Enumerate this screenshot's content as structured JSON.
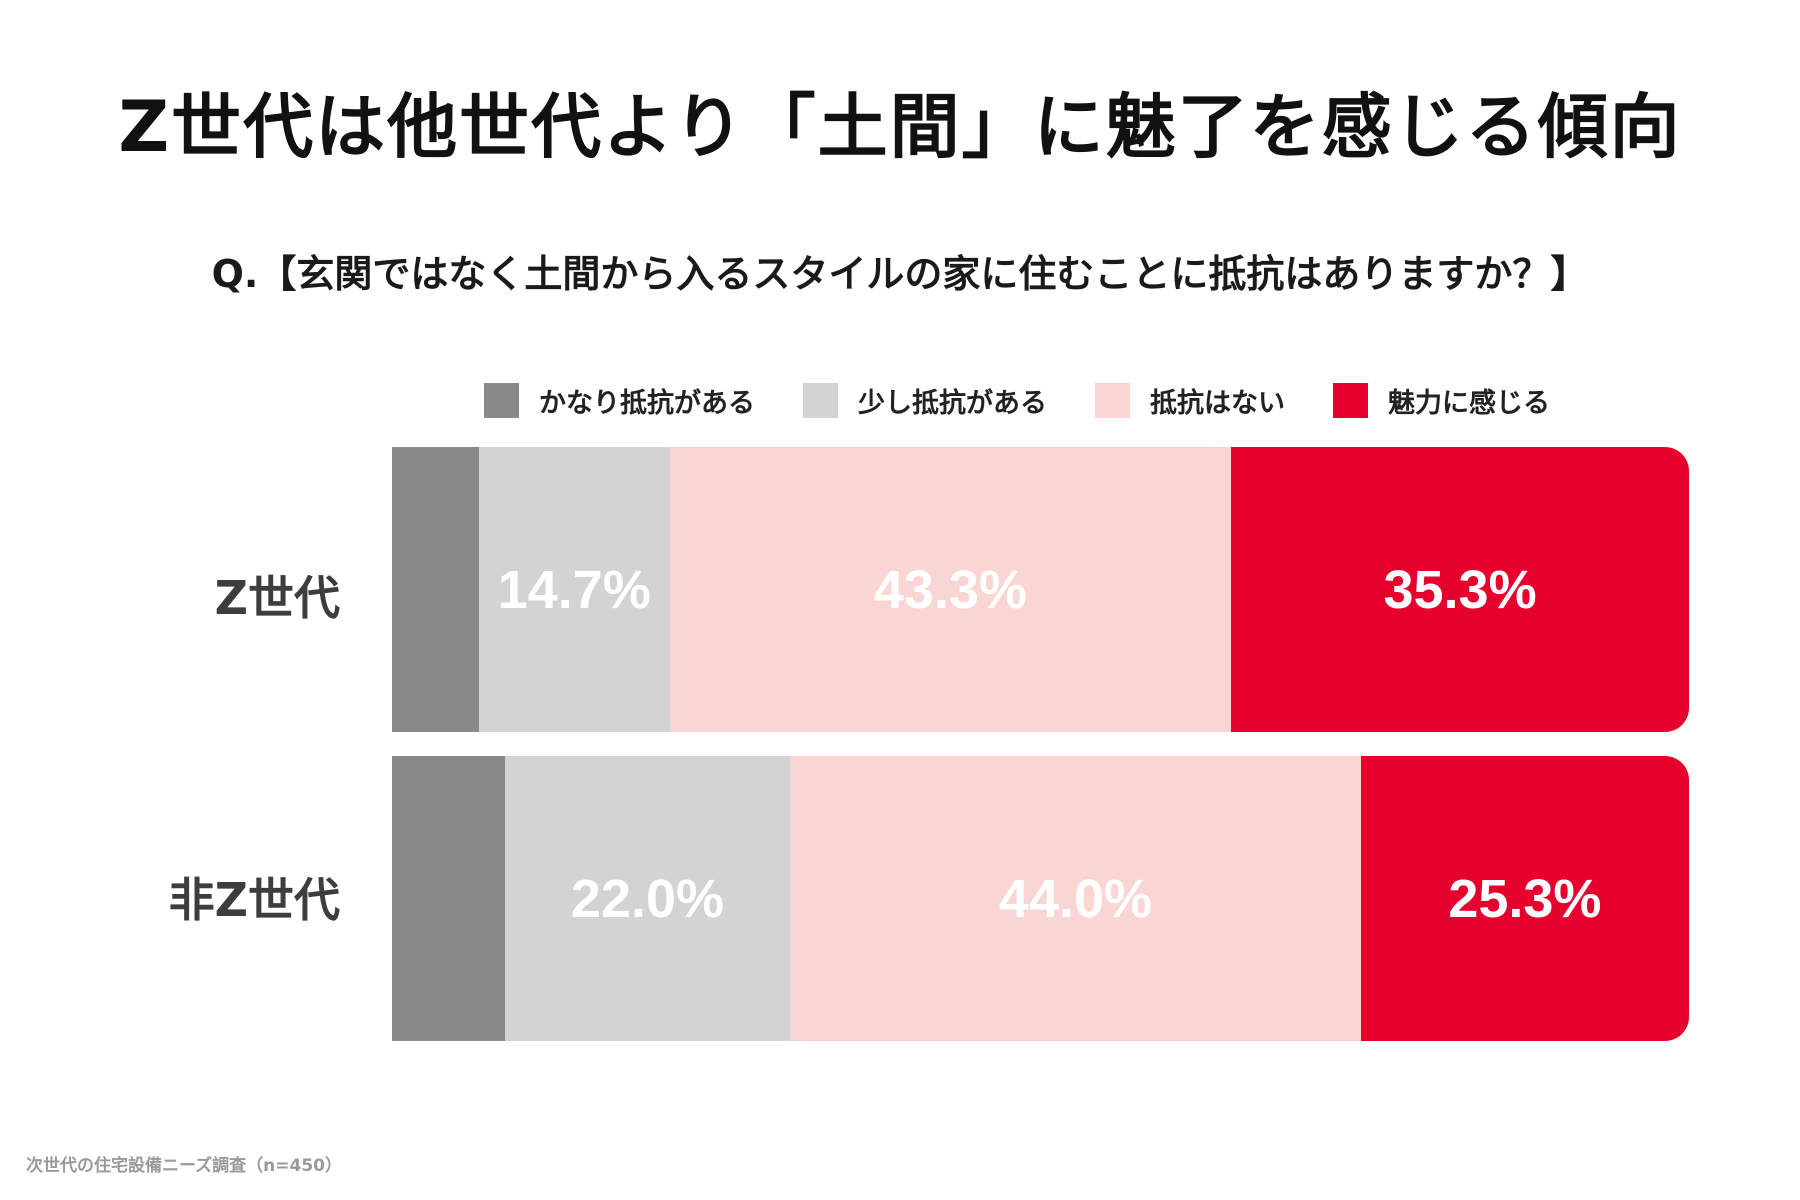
{
  "title": "Z世代は他世代より「土間」に魅了を感じる傾向",
  "question": "Q.【玄関ではなく土間から入るスタイルの家に住むことに抵抗はありますか？】",
  "note": "次世代の住宅設備ニーズ調査（n=450）",
  "colors": {
    "very_resistant": "#898989",
    "slightly_resistant": "#d3d3d3",
    "no_resistance": "#f9d5d4",
    "attractive": "#e5002d"
  },
  "chart_data": {
    "type": "bar",
    "orientation": "horizontal",
    "stacked": true,
    "percent_of_total": true,
    "categories": [
      "Z世代",
      "非Z世代"
    ],
    "series": [
      {
        "key": "very_resistant",
        "name": "かなり抵抗がある",
        "values": [
          6.7,
          8.7
        ],
        "labels": [
          "",
          ""
        ]
      },
      {
        "key": "slightly_resistant",
        "name": "少し抵抗がある",
        "values": [
          14.7,
          22.0
        ],
        "labels": [
          "14.7%",
          "22.0%"
        ]
      },
      {
        "key": "no_resistance",
        "name": "抵抗はない",
        "values": [
          43.3,
          44.0
        ],
        "labels": [
          "43.3%",
          "44.0%"
        ]
      },
      {
        "key": "attractive",
        "name": "魅力に感じる",
        "values": [
          35.3,
          25.3
        ],
        "labels": [
          "35.3%",
          "25.3%"
        ]
      }
    ],
    "legend_position": "top",
    "grid": false
  }
}
